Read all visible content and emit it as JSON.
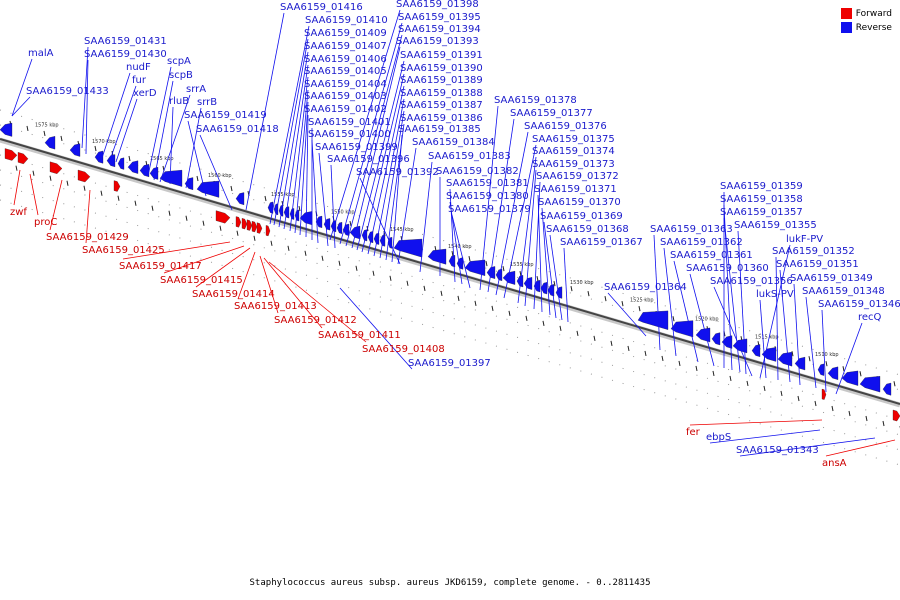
{
  "legend": {
    "forward_label": "Forward",
    "reverse_label": "Reverse",
    "forward_color": "#ee0000",
    "reverse_color": "#1010ee"
  },
  "caption": "Staphylococcus aureus subsp. aureus JKD6159, complete genome. - 0..2811435",
  "ticks": [
    "1575 kbp",
    "1570 kbp",
    "1565 kbp",
    "1560 kbp",
    "1555 kbp",
    "1550 kbp",
    "1545 kbp",
    "1540 kbp",
    "1535 kbp",
    "1530 kbp",
    "1525 kbp",
    "1520 kbp",
    "1515 kbp",
    "1510 kbp"
  ],
  "reverse_labels": [
    "malA",
    "SAA6159_01433",
    "SAA6159_01431",
    "SAA6159_01430",
    "nudF",
    "fur",
    "xerD",
    "scpA",
    "scpB",
    "srrA",
    "rluB",
    "srrB",
    "SAA6159_01419",
    "SAA6159_01418",
    "SAA6159_01416",
    "SAA6159_01410",
    "SAA6159_01409",
    "SAA6159_01407",
    "SAA6159_01406",
    "SAA6159_01405",
    "SAA6159_01404",
    "SAA6159_01403",
    "SAA6159_01402",
    "SAA6159_01401",
    "SAA6159_01400",
    "SAA6159_01399",
    "SAA6159_01396",
    "SAA6159_01398",
    "SAA6159_01395",
    "SAA6159_01394",
    "SAA6159_01393",
    "SAA6159_01391",
    "SAA6159_01390",
    "SAA6159_01389",
    "SAA6159_01388",
    "SAA6159_01387",
    "SAA6159_01386",
    "SAA6159_01385",
    "SAA6159_01384",
    "SAA6159_01383",
    "SAA6159_01392",
    "SAA6159_01382",
    "SAA6159_01381",
    "SAA6159_01380",
    "SAA6159_01379",
    "SAA6159_01378",
    "SAA6159_01377",
    "SAA6159_01376",
    "SAA6159_01375",
    "SAA6159_01374",
    "SAA6159_01373",
    "SAA6159_01372",
    "SAA6159_01371",
    "SAA6159_01370",
    "SAA6159_01369",
    "SAA6159_01368",
    "SAA6159_01367",
    "SAA6159_01364",
    "SAA6159_01363",
    "SAA6159_01362",
    "SAA6159_01361",
    "SAA6159_01360",
    "SAA6159_01359",
    "SAA6159_01358",
    "SAA6159_01357",
    "SAA6159_01355",
    "lukF-PV",
    "SAA6159_01356",
    "SAA6159_01352",
    "lukS-PV",
    "SAA6159_01351",
    "SAA6159_01349",
    "SAA6159_01348",
    "SAA6159_01346",
    "recQ",
    "ebpS",
    "SAA6159_01343",
    "SAA6159_01397"
  ],
  "forward_labels": [
    "zwf",
    "proC",
    "SAA6159_01429",
    "SAA6159_01425",
    "SAA6159_01417",
    "SAA6159_01415",
    "SAA6159_01414",
    "SAA6159_01413",
    "SAA6159_01412",
    "SAA6159_01411",
    "SAA6159_01408",
    "fer",
    "ansA"
  ]
}
